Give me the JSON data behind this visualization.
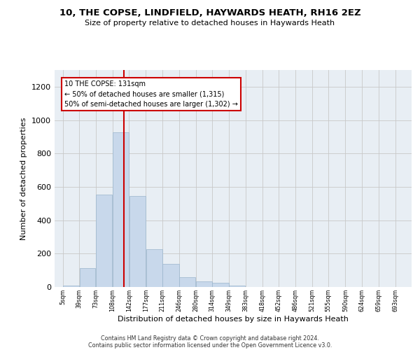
{
  "title": "10, THE COPSE, LINDFIELD, HAYWARDS HEATH, RH16 2EZ",
  "subtitle": "Size of property relative to detached houses in Haywards Heath",
  "xlabel": "Distribution of detached houses by size in Haywards Heath",
  "ylabel": "Number of detached properties",
  "bar_color": "#c8d8eb",
  "bar_edge_color": "#9ab5cc",
  "vline_color": "#cc0000",
  "vline_x": 131,
  "annotation_text": "10 THE COPSE: 131sqm\n← 50% of detached houses are smaller (1,315)\n50% of semi-detached houses are larger (1,302) →",
  "bin_edges": [
    5,
    39,
    73,
    108,
    142,
    177,
    211,
    246,
    280,
    314,
    349,
    383,
    418,
    452,
    486,
    521,
    555,
    590,
    624,
    659,
    693
  ],
  "bar_heights": [
    10,
    115,
    555,
    925,
    545,
    225,
    140,
    58,
    32,
    25,
    10,
    0,
    0,
    0,
    0,
    0,
    0,
    0,
    0,
    0
  ],
  "ylim": [
    0,
    1300
  ],
  "yticks": [
    0,
    200,
    400,
    600,
    800,
    1000,
    1200
  ],
  "xtick_labels": [
    "5sqm",
    "39sqm",
    "73sqm",
    "108sqm",
    "142sqm",
    "177sqm",
    "211sqm",
    "246sqm",
    "280sqm",
    "314sqm",
    "349sqm",
    "383sqm",
    "418sqm",
    "452sqm",
    "486sqm",
    "521sqm",
    "555sqm",
    "590sqm",
    "624sqm",
    "659sqm",
    "693sqm"
  ],
  "footer_line1": "Contains HM Land Registry data © Crown copyright and database right 2024.",
  "footer_line2": "Contains public sector information licensed under the Open Government Licence v3.0.",
  "plot_bg_color": "#e8eef4",
  "grid_color": "#c8c8c8",
  "fig_width": 6.0,
  "fig_height": 5.0,
  "dpi": 100
}
